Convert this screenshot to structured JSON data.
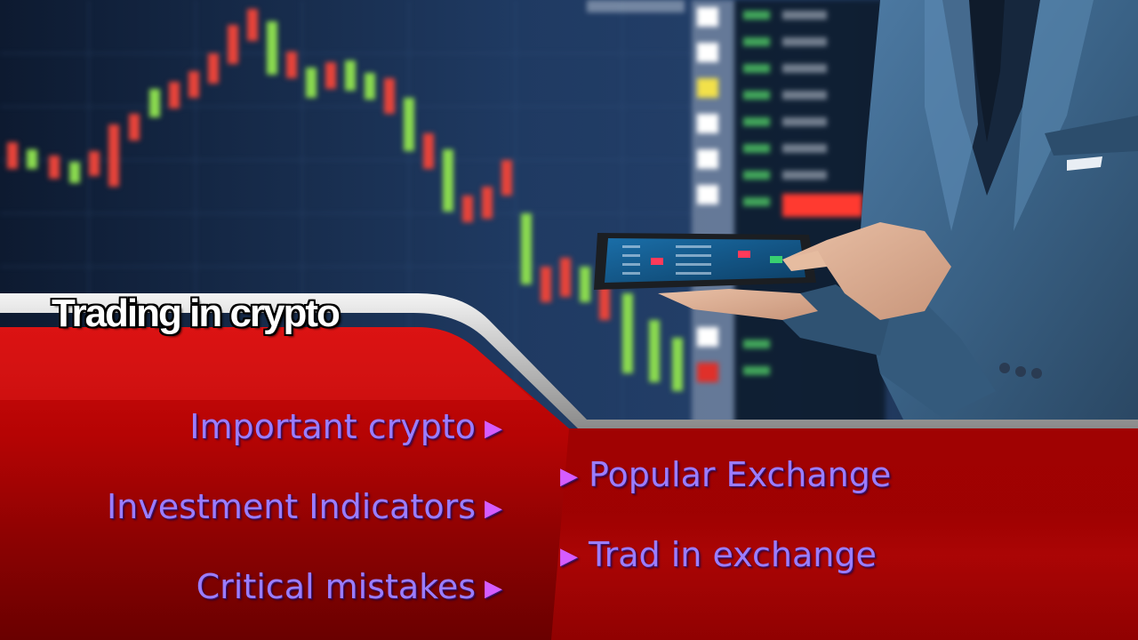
{
  "slide": {
    "title": "Trading in crypto",
    "left_items": [
      {
        "label": "Important crypto",
        "arrow": "▶"
      },
      {
        "label": "Investment Indicators",
        "arrow": "▶"
      },
      {
        "label": "Critical mistakes",
        "arrow": "▶"
      }
    ],
    "right_items": [
      {
        "label": "Popular Exchange",
        "arrow": "▶"
      },
      {
        "label": "Trad in exchange",
        "arrow": "▶"
      }
    ]
  },
  "colors": {
    "red_panel": "#c40606",
    "dark_red": "#7a0000",
    "item_text": "#9b7dff",
    "arrow": "#d55cff",
    "background": "#1c2f4e"
  },
  "background_image": {
    "icons": [
      "candlestick-chart-icon",
      "tablet-icon",
      "businessman-icon"
    ]
  }
}
